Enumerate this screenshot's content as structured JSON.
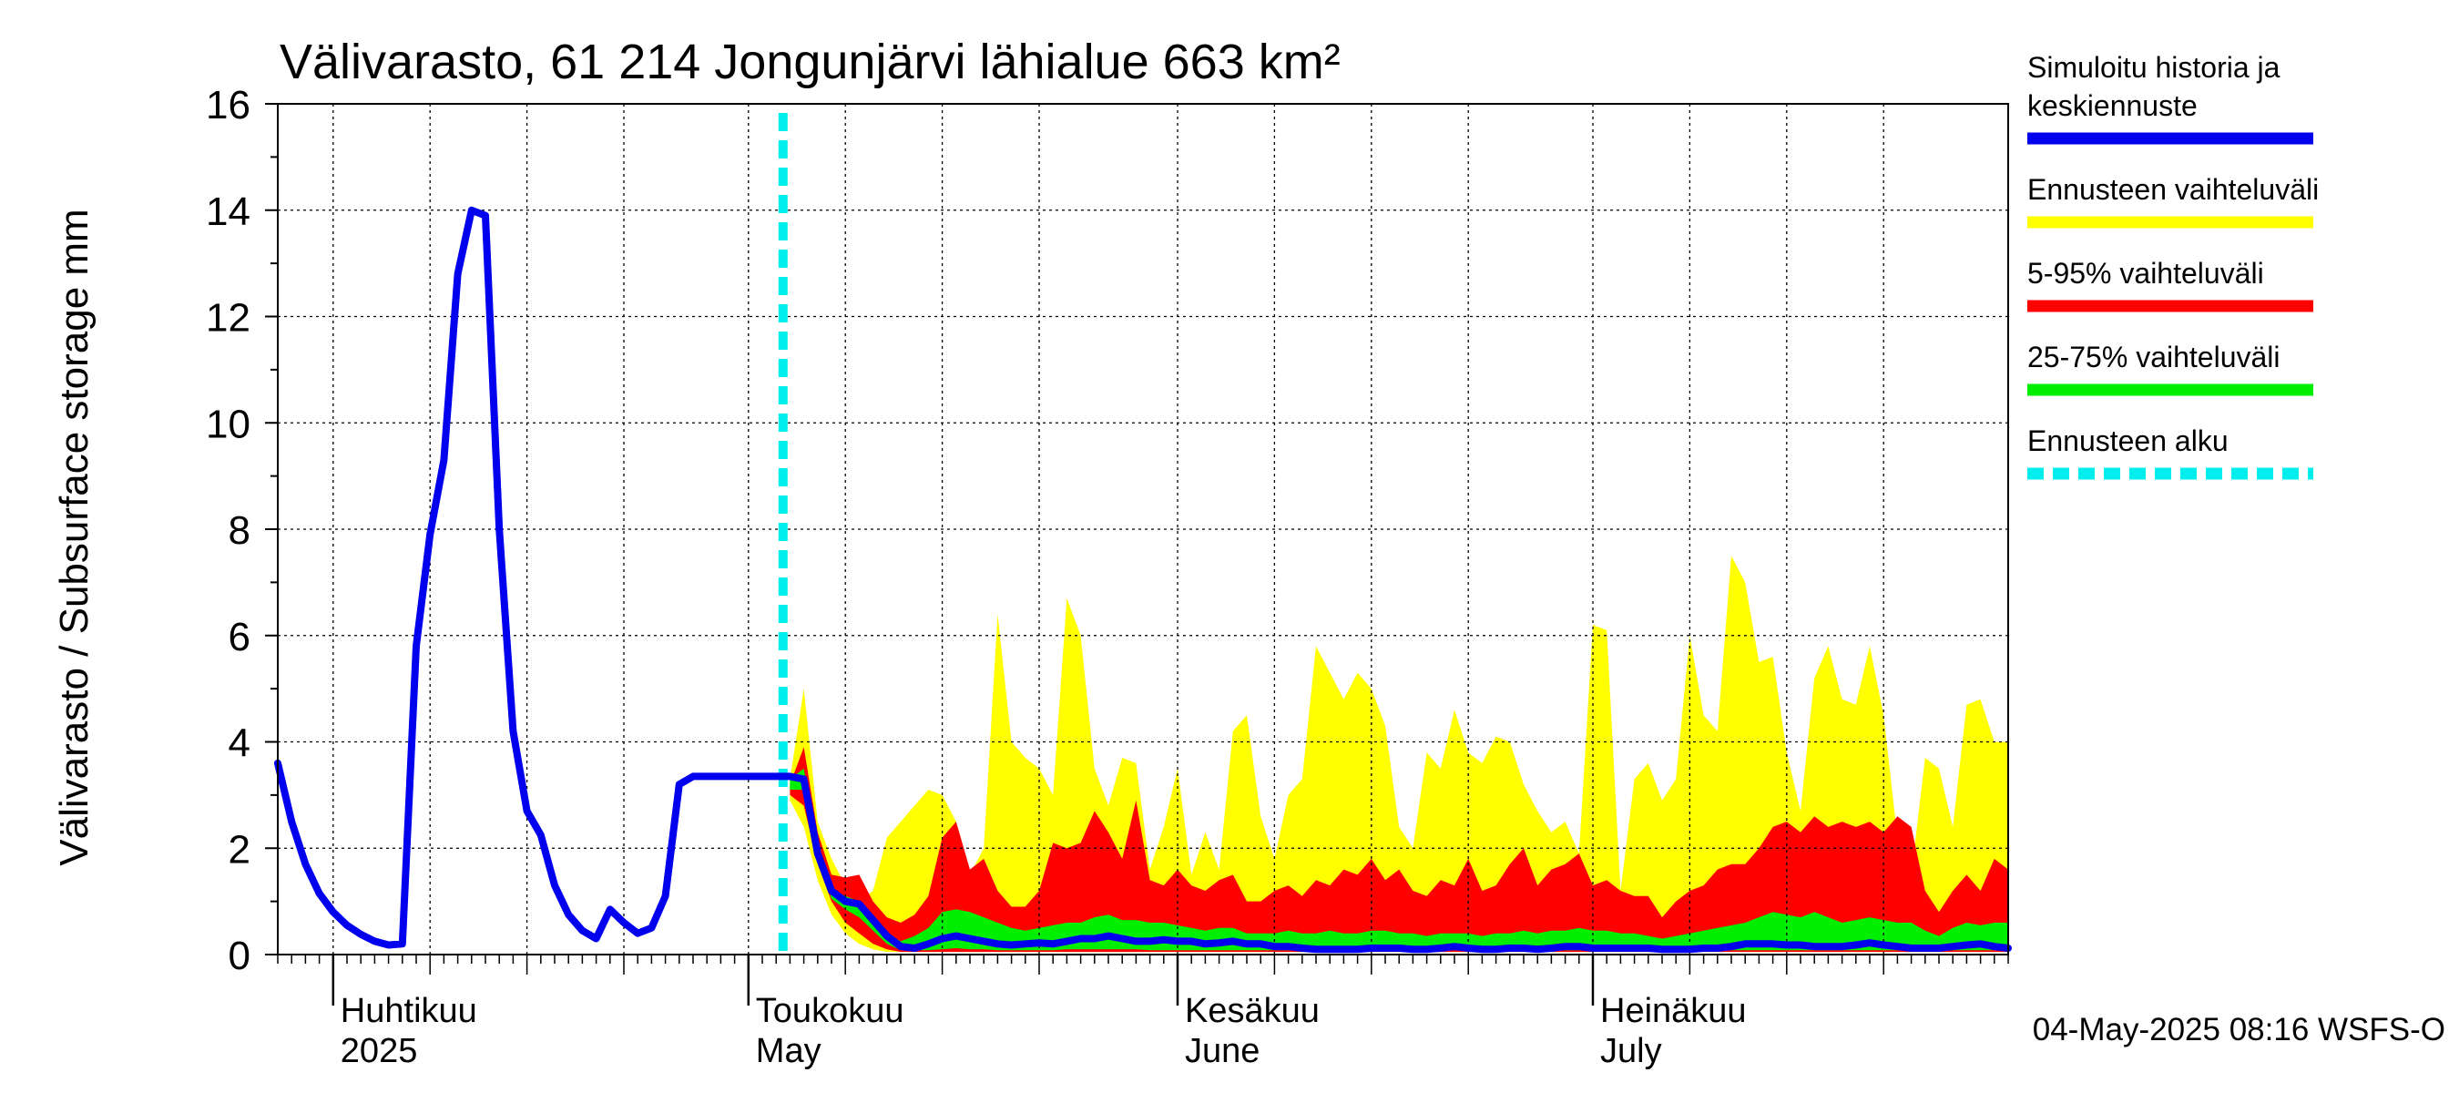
{
  "chart_data": {
    "type": "area",
    "title": "Välivarasto, 61 214 Jongunjärvi lähialue 663 km²",
    "ylabel": "Välivarasto / Subsurface storage  mm",
    "ylim": [
      0,
      16
    ],
    "yticks": [
      "0",
      "2",
      "4",
      "6",
      "8",
      "10",
      "12",
      "14",
      "16"
    ],
    "xlim": [
      "2025-03-28",
      "2025-07-31"
    ],
    "grid": true,
    "legend_position": "right",
    "forecast_start": "2025-05-04",
    "months": [
      {
        "date": "2025-04-01",
        "fi": "Huhtikuu",
        "en": "2025"
      },
      {
        "date": "2025-05-01",
        "fi": "Toukokuu",
        "en": "May"
      },
      {
        "date": "2025-06-01",
        "fi": "Kesäkuu",
        "en": "June"
      },
      {
        "date": "2025-07-01",
        "fi": "Heinäkuu",
        "en": "July"
      }
    ],
    "history_start": "2025-03-28",
    "history_values": [
      3.6,
      2.5,
      1.7,
      1.15,
      0.8,
      0.55,
      0.38,
      0.25,
      0.18,
      0.2,
      5.8,
      7.9,
      9.3,
      12.8,
      14.0,
      13.9,
      8.0,
      4.2,
      2.7,
      2.25,
      1.3,
      0.75,
      0.45,
      0.3,
      0.85,
      0.6,
      0.4,
      0.5,
      1.1,
      3.2,
      3.35
    ],
    "forecast_x": [
      "2025-05-04",
      "2025-05-05",
      "2025-05-06",
      "2025-05-07",
      "2025-05-08",
      "2025-05-09",
      "2025-05-10",
      "2025-05-11",
      "2025-05-12",
      "2025-05-13",
      "2025-05-14",
      "2025-05-15",
      "2025-05-16",
      "2025-05-17",
      "2025-05-18",
      "2025-05-19",
      "2025-05-20",
      "2025-05-21",
      "2025-05-22",
      "2025-05-23",
      "2025-05-24",
      "2025-05-25",
      "2025-05-26",
      "2025-05-27",
      "2025-05-28",
      "2025-05-29",
      "2025-05-30",
      "2025-05-31",
      "2025-06-01",
      "2025-06-02",
      "2025-06-03",
      "2025-06-04",
      "2025-06-05",
      "2025-06-06",
      "2025-06-07",
      "2025-06-08",
      "2025-06-09",
      "2025-06-10",
      "2025-06-11",
      "2025-06-12",
      "2025-06-13",
      "2025-06-14",
      "2025-06-15",
      "2025-06-16",
      "2025-06-17",
      "2025-06-18",
      "2025-06-19",
      "2025-06-20",
      "2025-06-21",
      "2025-06-22",
      "2025-06-23",
      "2025-06-24",
      "2025-06-25",
      "2025-06-26",
      "2025-06-27",
      "2025-06-28",
      "2025-06-29",
      "2025-06-30",
      "2025-07-01",
      "2025-07-02",
      "2025-07-03",
      "2025-07-04",
      "2025-07-05",
      "2025-07-06",
      "2025-07-07",
      "2025-07-08",
      "2025-07-09",
      "2025-07-10",
      "2025-07-11",
      "2025-07-12",
      "2025-07-13",
      "2025-07-14",
      "2025-07-15",
      "2025-07-16",
      "2025-07-17",
      "2025-07-18",
      "2025-07-19",
      "2025-07-20",
      "2025-07-21",
      "2025-07-22",
      "2025-07-23",
      "2025-07-24",
      "2025-07-25",
      "2025-07-26",
      "2025-07-27",
      "2025-07-28",
      "2025-07-29",
      "2025-07-30",
      "2025-07-31"
    ],
    "series": [
      {
        "name": "Ennusteen vaihteluväli",
        "color": "#ffff00",
        "upper": [
          3.3,
          5.0,
          2.5,
          1.8,
          1.3,
          1.0,
          1.2,
          2.2,
          2.5,
          2.8,
          3.1,
          3.0,
          2.5,
          1.5,
          2.0,
          6.4,
          4.0,
          3.7,
          3.5,
          3.0,
          6.7,
          6.0,
          3.5,
          2.8,
          3.7,
          3.6,
          1.6,
          2.4,
          3.5,
          1.5,
          2.3,
          1.6,
          4.2,
          4.5,
          2.6,
          1.8,
          3.0,
          3.3,
          5.8,
          5.3,
          4.8,
          5.3,
          5.0,
          4.3,
          2.4,
          2.0,
          3.8,
          3.5,
          4.6,
          3.8,
          3.6,
          4.1,
          4.0,
          3.2,
          2.7,
          2.3,
          2.5,
          1.9,
          6.2,
          6.1,
          1.2,
          3.3,
          3.6,
          2.9,
          3.3,
          6.0,
          4.5,
          4.2,
          7.5,
          7.0,
          5.5,
          5.6,
          3.8,
          2.7,
          5.2,
          5.8,
          4.8,
          4.7,
          5.8,
          4.5,
          2.2,
          1.5,
          3.7,
          3.5,
          2.4,
          4.7,
          4.8,
          4.0,
          4.0
        ],
        "lower": [
          2.9,
          2.4,
          1.4,
          0.75,
          0.4,
          0.2,
          0.1,
          0.05,
          0.05,
          0.05,
          0.05,
          0.05,
          0.05,
          0.05,
          0.05,
          0.05,
          0.05,
          0.05,
          0.05,
          0.05,
          0.05,
          0.05,
          0.05,
          0.05,
          0.05,
          0.05,
          0.05,
          0.05,
          0.05,
          0.05,
          0.05,
          0.05,
          0.05,
          0.05,
          0.05,
          0.05,
          0.05,
          0.05,
          0.05,
          0.05,
          0.05,
          0.05,
          0.05,
          0.05,
          0.05,
          0.05,
          0.05,
          0.05,
          0.05,
          0.05,
          0.05,
          0.05,
          0.05,
          0.05,
          0.05,
          0.05,
          0.05,
          0.05,
          0.05,
          0.05,
          0.05,
          0.05,
          0.05,
          0.05,
          0.05,
          0.05,
          0.05,
          0.05,
          0.05,
          0.05,
          0.05,
          0.05,
          0.05,
          0.05,
          0.05,
          0.05,
          0.05,
          0.05,
          0.05,
          0.05,
          0.05,
          0.05,
          0.05,
          0.05,
          0.05,
          0.05,
          0.05,
          0.05,
          0.05
        ]
      },
      {
        "name": "5-95% vaihteluväli",
        "color": "#ff0000",
        "upper": [
          3.2,
          3.9,
          2.3,
          1.5,
          1.45,
          1.5,
          1.0,
          0.7,
          0.6,
          0.75,
          1.1,
          2.2,
          2.5,
          1.6,
          1.8,
          1.2,
          0.9,
          0.9,
          1.2,
          2.1,
          2.0,
          2.1,
          2.7,
          2.3,
          1.8,
          2.9,
          1.4,
          1.3,
          1.6,
          1.3,
          1.2,
          1.4,
          1.5,
          1.0,
          1.0,
          1.2,
          1.3,
          1.1,
          1.4,
          1.3,
          1.6,
          1.5,
          1.8,
          1.4,
          1.6,
          1.2,
          1.1,
          1.4,
          1.3,
          1.8,
          1.2,
          1.3,
          1.7,
          2.0,
          1.3,
          1.6,
          1.7,
          1.9,
          1.3,
          1.4,
          1.2,
          1.1,
          1.1,
          0.7,
          1.0,
          1.2,
          1.3,
          1.6,
          1.7,
          1.7,
          2.0,
          2.4,
          2.5,
          2.3,
          2.6,
          2.4,
          2.5,
          2.4,
          2.5,
          2.3,
          2.6,
          2.4,
          1.2,
          0.8,
          1.2,
          1.5,
          1.2,
          1.8,
          1.6
        ],
        "lower": [
          3.0,
          2.8,
          1.7,
          1.0,
          0.6,
          0.4,
          0.2,
          0.1,
          0.05,
          0.05,
          0.05,
          0.05,
          0.05,
          0.05,
          0.05,
          0.05,
          0.05,
          0.05,
          0.05,
          0.05,
          0.05,
          0.05,
          0.05,
          0.05,
          0.05,
          0.05,
          0.05,
          0.05,
          0.05,
          0.05,
          0.05,
          0.05,
          0.05,
          0.05,
          0.05,
          0.05,
          0.05,
          0.05,
          0.05,
          0.05,
          0.05,
          0.05,
          0.05,
          0.05,
          0.05,
          0.05,
          0.05,
          0.05,
          0.05,
          0.05,
          0.05,
          0.05,
          0.05,
          0.05,
          0.05,
          0.05,
          0.05,
          0.05,
          0.05,
          0.05,
          0.05,
          0.05,
          0.05,
          0.05,
          0.05,
          0.05,
          0.05,
          0.05,
          0.05,
          0.05,
          0.05,
          0.05,
          0.05,
          0.05,
          0.05,
          0.05,
          0.05,
          0.05,
          0.05,
          0.05,
          0.05,
          0.05,
          0.05,
          0.05,
          0.05,
          0.05,
          0.05,
          0.05,
          0.05
        ]
      },
      {
        "name": "25-75% vaihteluväli",
        "color": "#00ee00",
        "upper": [
          3.3,
          3.5,
          2.0,
          1.2,
          1.1,
          1.0,
          0.7,
          0.4,
          0.25,
          0.35,
          0.5,
          0.8,
          0.85,
          0.8,
          0.7,
          0.6,
          0.5,
          0.45,
          0.5,
          0.55,
          0.6,
          0.6,
          0.7,
          0.75,
          0.65,
          0.65,
          0.6,
          0.6,
          0.55,
          0.5,
          0.45,
          0.5,
          0.5,
          0.4,
          0.4,
          0.4,
          0.45,
          0.4,
          0.4,
          0.45,
          0.4,
          0.4,
          0.45,
          0.45,
          0.4,
          0.4,
          0.35,
          0.4,
          0.4,
          0.4,
          0.35,
          0.4,
          0.4,
          0.45,
          0.4,
          0.45,
          0.45,
          0.5,
          0.45,
          0.45,
          0.4,
          0.4,
          0.35,
          0.3,
          0.35,
          0.4,
          0.45,
          0.5,
          0.55,
          0.6,
          0.7,
          0.8,
          0.75,
          0.7,
          0.8,
          0.7,
          0.6,
          0.65,
          0.7,
          0.65,
          0.6,
          0.6,
          0.45,
          0.35,
          0.5,
          0.6,
          0.55,
          0.6,
          0.6
        ],
        "lower": [
          3.1,
          3.1,
          1.8,
          1.05,
          0.85,
          0.7,
          0.45,
          0.2,
          0.08,
          0.08,
          0.08,
          0.1,
          0.12,
          0.1,
          0.1,
          0.08,
          0.08,
          0.08,
          0.08,
          0.08,
          0.1,
          0.1,
          0.1,
          0.1,
          0.1,
          0.1,
          0.08,
          0.08,
          0.08,
          0.08,
          0.08,
          0.08,
          0.08,
          0.08,
          0.08,
          0.08,
          0.08,
          0.08,
          0.08,
          0.08,
          0.08,
          0.08,
          0.08,
          0.08,
          0.08,
          0.08,
          0.08,
          0.08,
          0.08,
          0.08,
          0.08,
          0.08,
          0.08,
          0.08,
          0.08,
          0.08,
          0.08,
          0.08,
          0.08,
          0.08,
          0.08,
          0.08,
          0.08,
          0.08,
          0.08,
          0.08,
          0.08,
          0.08,
          0.08,
          0.08,
          0.08,
          0.08,
          0.08,
          0.08,
          0.08,
          0.08,
          0.08,
          0.08,
          0.08,
          0.08,
          0.08,
          0.08,
          0.08,
          0.08,
          0.08,
          0.08,
          0.08,
          0.08,
          0.08
        ]
      },
      {
        "name": "Simuloitu historia ja keskiennuste",
        "color": "#0000ee",
        "values": [
          3.35,
          3.3,
          1.9,
          1.2,
          1.0,
          0.95,
          0.65,
          0.35,
          0.15,
          0.12,
          0.2,
          0.3,
          0.35,
          0.3,
          0.25,
          0.2,
          0.18,
          0.2,
          0.22,
          0.2,
          0.25,
          0.3,
          0.3,
          0.35,
          0.3,
          0.25,
          0.25,
          0.28,
          0.25,
          0.25,
          0.2,
          0.22,
          0.25,
          0.2,
          0.2,
          0.15,
          0.15,
          0.12,
          0.1,
          0.1,
          0.1,
          0.1,
          0.12,
          0.12,
          0.12,
          0.1,
          0.1,
          0.12,
          0.15,
          0.12,
          0.1,
          0.1,
          0.12,
          0.12,
          0.1,
          0.12,
          0.15,
          0.15,
          0.12,
          0.12,
          0.12,
          0.12,
          0.12,
          0.1,
          0.1,
          0.1,
          0.12,
          0.12,
          0.15,
          0.2,
          0.2,
          0.2,
          0.18,
          0.18,
          0.15,
          0.15,
          0.15,
          0.18,
          0.22,
          0.18,
          0.15,
          0.12,
          0.12,
          0.12,
          0.15,
          0.18,
          0.2,
          0.15,
          0.12
        ]
      }
    ],
    "legend": [
      {
        "label_lines": [
          "Simuloitu historia ja",
          "keskiennuste"
        ],
        "color": "#0000ee",
        "style": "solid"
      },
      {
        "label_lines": [
          "Ennusteen vaihteluväli"
        ],
        "color": "#ffff00",
        "style": "solid"
      },
      {
        "label_lines": [
          "5-95% vaihteluväli"
        ],
        "color": "#ff0000",
        "style": "solid"
      },
      {
        "label_lines": [
          "25-75% vaihteluväli"
        ],
        "color": "#00ee00",
        "style": "solid"
      },
      {
        "label_lines": [
          "Ennusteen alku"
        ],
        "color": "#00eeee",
        "style": "dashed"
      }
    ],
    "footer": "04-May-2025 08:16 WSFS-O"
  }
}
